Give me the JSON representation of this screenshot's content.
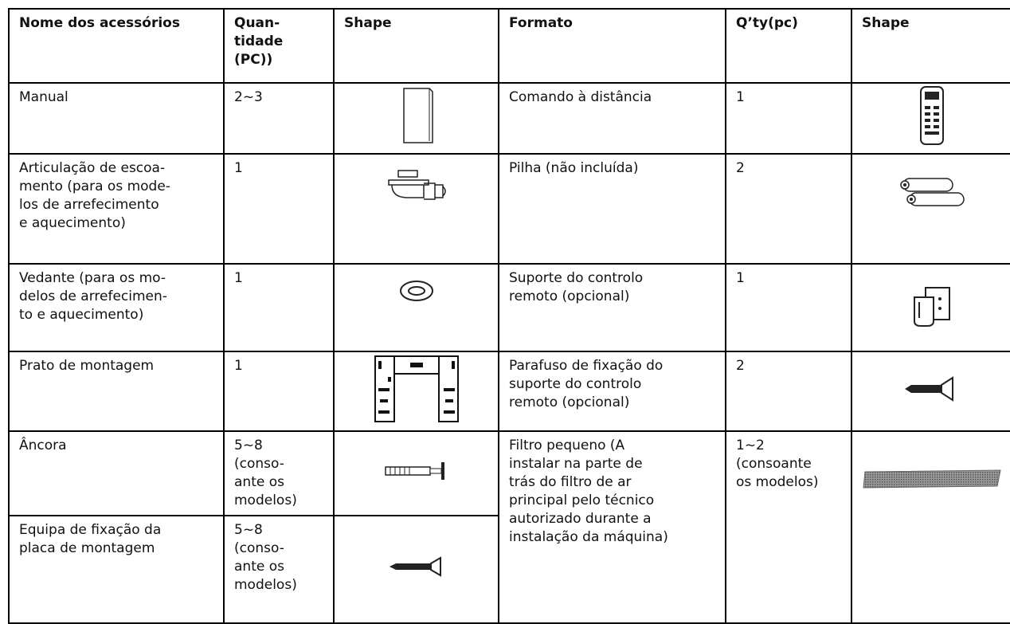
{
  "table": {
    "header": [
      [
        "Nome dos acessórios"
      ],
      [
        "Quan-",
        "tidade",
        "(PC))"
      ],
      [
        "Shape"
      ],
      [
        "Formato"
      ],
      [
        "Q’ty(pc)"
      ],
      [
        "Shape"
      ]
    ],
    "rows": [
      [
        [
          "Manual"
        ],
        [
          "2~3"
        ],
        [
          "Comando à distância"
        ],
        [
          "1"
        ]
      ],
      [
        [
          "Articulação de escoa-",
          "mento (para os mode-",
          "los de arrefecimento",
          "e aquecimento)"
        ],
        [
          "1"
        ],
        [
          "Pilha (não incluída)"
        ],
        [
          "2"
        ]
      ],
      [
        [
          "Vedante (para os mo-",
          "delos de arrefecimen-",
          "to e aquecimento)"
        ],
        [
          "1"
        ],
        [
          "Suporte do controlo",
          "remoto (opcional)"
        ],
        [
          "1"
        ]
      ],
      [
        [
          "Prato de montagem"
        ],
        [
          "1"
        ],
        [
          "Parafuso de fixação do",
          "suporte do controlo",
          "remoto (opcional)"
        ],
        [
          "2"
        ]
      ],
      [
        [
          "Âncora"
        ],
        [
          "5~8",
          "(conso-",
          "ante os",
          "modelos)"
        ],
        [
          "Filtro pequeno (A",
          "instalar na parte de",
          "trás do filtro de ar",
          "principal pelo técnico",
          "autorizado durante a",
          "instalação da máquina)"
        ],
        [
          "1~2",
          "(consoante",
          "os modelos)"
        ]
      ],
      [
        [
          "Equipa de fixação da",
          "placa de montagem"
        ],
        [
          "5~8",
          "(conso-",
          "ante os",
          "modelos)"
        ]
      ]
    ]
  }
}
